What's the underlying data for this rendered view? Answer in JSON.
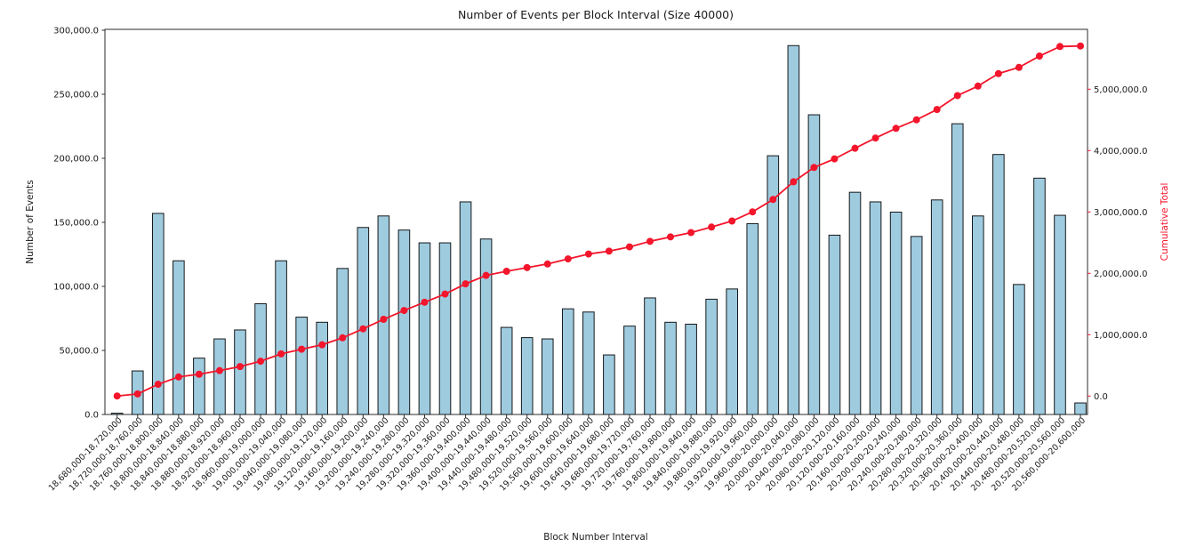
{
  "chart_data": {
    "type": "bar",
    "title": "Number of Events per Block Interval (Size 40000)",
    "xlabel": "Block Number Interval",
    "ylabel": "Number of Events",
    "ylabel_right": "Cumulative Total",
    "grid": false,
    "legend": "none",
    "ylim_left": [
      0,
      301000
    ],
    "left_tick_values": [
      0,
      50000,
      100000,
      150000,
      200000,
      250000,
      300000
    ],
    "left_tick_labels": [
      "0.0",
      "50,000.0",
      "100,000.0",
      "150,000.0",
      "200,000.0",
      "250,000.0",
      "300,000.0"
    ],
    "right_tick_values": [
      0,
      1000000,
      2000000,
      3000000,
      4000000,
      5000000
    ],
    "right_tick_labels": [
      "0.0",
      "1,000,000.0",
      "2,000,000.0",
      "3,000,000.0",
      "4,000,000.0",
      "5,000,000.0"
    ],
    "categories": [
      "18,680,000-18,720,000",
      "18,720,000-18,760,000",
      "18,760,000-18,800,000",
      "18,800,000-18,840,000",
      "18,840,000-18,880,000",
      "18,880,000-18,920,000",
      "18,920,000-18,960,000",
      "18,960,000-19,000,000",
      "19,000,000-19,040,000",
      "19,040,000-19,080,000",
      "19,080,000-19,120,000",
      "19,120,000-19,160,000",
      "19,160,000-19,200,000",
      "19,200,000-19,240,000",
      "19,240,000-19,280,000",
      "19,280,000-19,320,000",
      "19,320,000-19,360,000",
      "19,360,000-19,400,000",
      "19,400,000-19,440,000",
      "19,440,000-19,480,000",
      "19,480,000-19,520,000",
      "19,520,000-19,560,000",
      "19,560,000-19,600,000",
      "19,600,000-19,640,000",
      "19,640,000-19,680,000",
      "19,680,000-19,720,000",
      "19,720,000-19,760,000",
      "19,760,000-19,800,000",
      "19,800,000-19,840,000",
      "19,840,000-19,880,000",
      "19,880,000-19,920,000",
      "19,920,000-19,960,000",
      "19,960,000-20,000,000",
      "20,000,000-20,040,000",
      "20,040,000-20,080,000",
      "20,080,000-20,120,000",
      "20,120,000-20,160,000",
      "20,160,000-20,200,000",
      "20,200,000-20,240,000",
      "20,240,000-20,280,000",
      "20,280,000-20,320,000",
      "20,320,000-20,360,000",
      "20,360,000-20,400,000",
      "20,400,000-20,440,000",
      "20,440,000-20,480,000",
      "20,480,000-20,520,000",
      "20,520,000-20,560,000",
      "20,560,000-20,600,000"
    ],
    "series": [
      {
        "name": "Number of Events",
        "type": "bar",
        "axis": "left",
        "values": [
          1000,
          34000,
          157000,
          120000,
          44000,
          59000,
          66000,
          86500,
          120000,
          76000,
          72000,
          114000,
          146000,
          155000,
          144000,
          134000,
          134000,
          166000,
          137000,
          68000,
          60000,
          59000,
          82500,
          80000,
          46500,
          69000,
          91000,
          72000,
          70500,
          90000,
          98000,
          149000,
          202000,
          288000,
          234000,
          140000,
          173500,
          166000,
          158000,
          139000,
          167500,
          227000,
          155000,
          203000,
          101500,
          184500,
          155500,
          9000
        ]
      },
      {
        "name": "Cumulative Total",
        "type": "line",
        "axis": "right",
        "derived": "cumulative sum of bar values",
        "values": [
          1000,
          35000,
          192000,
          312000,
          356000,
          415000,
          481000,
          567500,
          687500,
          763500,
          835500,
          949500,
          1095500,
          1250500,
          1394500,
          1528500,
          1662500,
          1828500,
          1965500,
          2033500,
          2093500,
          2152500,
          2235000,
          2315000,
          2361500,
          2430500,
          2521500,
          2593500,
          2664000,
          2754000,
          2852000,
          3001000,
          3203000,
          3491000,
          3725000,
          3865000,
          4038500,
          4204500,
          4362500,
          4501500,
          4669000,
          4896000,
          5051000,
          5254000,
          5355500,
          5540000,
          5695500,
          5704500
        ]
      }
    ],
    "colors": {
      "bar_fill": "#9fcbdf",
      "bar_edge": "#16181a",
      "line": "#f3152b",
      "right_axis_text": "#f3152b",
      "left_axis_text": "#1a1a1a",
      "spine": "#2b2b2b",
      "background": "#ffffff"
    }
  }
}
